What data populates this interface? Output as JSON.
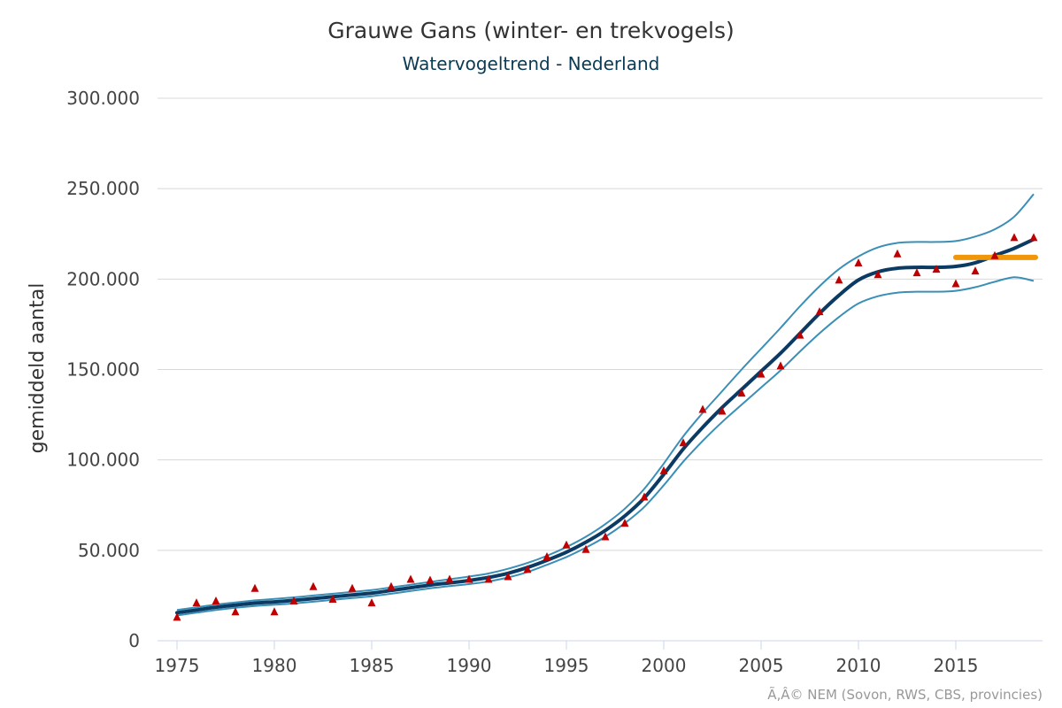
{
  "chart_data": {
    "type": "line",
    "title": "Grauwe Gans (winter- en trekvogels)",
    "subtitle": "Watervogeltrend - Nederland",
    "ylabel": "gemiddeld aantal",
    "xlabel": "",
    "credit": "Ã‚Â© NEM (Sovon, RWS, CBS, provincies)",
    "xlim": [
      1975,
      2019
    ],
    "ylim": [
      0,
      300000
    ],
    "x_ticks": [
      1975,
      1980,
      1985,
      1990,
      1995,
      2000,
      2005,
      2010,
      2015
    ],
    "x_tick_labels": [
      "1975",
      "1980",
      "1985",
      "1990",
      "1995",
      "2000",
      "2005",
      "2010",
      "2015"
    ],
    "y_ticks": [
      0,
      50000,
      100000,
      150000,
      200000,
      250000,
      300000
    ],
    "y_tick_labels": [
      "0",
      "50.000",
      "100.000",
      "150.000",
      "200.000",
      "250.000",
      "300.000"
    ],
    "grid": true,
    "legend": "none",
    "x": [
      1975,
      1976,
      1977,
      1978,
      1979,
      1980,
      1981,
      1982,
      1983,
      1984,
      1985,
      1986,
      1987,
      1988,
      1989,
      1990,
      1991,
      1992,
      1993,
      1994,
      1995,
      1996,
      1997,
      1998,
      1999,
      2000,
      2001,
      2002,
      2003,
      2004,
      2005,
      2006,
      2007,
      2008,
      2009,
      2010,
      2011,
      2012,
      2013,
      2014,
      2015,
      2016,
      2017,
      2018,
      2019
    ],
    "series": [
      {
        "kind": "trend",
        "color": "#0b3a63",
        "values": [
          15500,
          17000,
          18500,
          19700,
          20800,
          21500,
          22300,
          23300,
          24300,
          25300,
          26300,
          27800,
          29300,
          30800,
          32000,
          33300,
          35000,
          37300,
          40500,
          44500,
          49000,
          54500,
          61000,
          69000,
          79000,
          92000,
          106000,
          118000,
          129000,
          139000,
          149000,
          159000,
          170000,
          181000,
          191000,
          199500,
          204000,
          206000,
          206500,
          206500,
          207000,
          209000,
          213000,
          217000,
          222000
        ]
      },
      {
        "kind": "upper_bound",
        "color": "#3a8fb7",
        "values": [
          17000,
          18500,
          20000,
          21200,
          22300,
          23100,
          24000,
          25000,
          26000,
          27000,
          28000,
          29500,
          31000,
          32500,
          34000,
          35500,
          37200,
          39800,
          43000,
          47000,
          51800,
          57500,
          64500,
          73000,
          84000,
          98000,
          113000,
          126000,
          138000,
          150000,
          161500,
          173000,
          185000,
          196000,
          205500,
          212500,
          217500,
          220000,
          220500,
          220500,
          221000,
          223500,
          227500,
          234500,
          247000
        ]
      },
      {
        "kind": "lower_bound",
        "color": "#3a8fb7",
        "values": [
          14000,
          15500,
          17000,
          18200,
          19200,
          19900,
          20600,
          21600,
          22600,
          23600,
          24600,
          26000,
          27500,
          29000,
          30200,
          31300,
          32800,
          35000,
          38000,
          42000,
          46300,
          51500,
          57500,
          65000,
          74000,
          86000,
          99000,
          110500,
          121000,
          130500,
          140000,
          149500,
          160000,
          170000,
          179000,
          186500,
          190500,
          192500,
          193000,
          193000,
          193500,
          195500,
          198500,
          201000,
          199000
        ]
      },
      {
        "kind": "observed_index",
        "color": "#c00000",
        "values": [
          13000,
          21000,
          22000,
          16000,
          29000,
          16000,
          22000,
          30000,
          23000,
          29000,
          21000,
          30000,
          34000,
          33500,
          34000,
          34000,
          34000,
          35500,
          39500,
          46500,
          53000,
          50500,
          57500,
          65000,
          79500,
          94000,
          109500,
          128000,
          127000,
          137000,
          147500,
          152000,
          169000,
          182000,
          199500,
          209000,
          202500,
          214000,
          203500,
          205500,
          197500,
          204500,
          213000,
          223000,
          223000
        ]
      }
    ],
    "reference_line": {
      "color": "#f0960a",
      "x_range": [
        2015,
        2019
      ],
      "value": 212000
    }
  }
}
